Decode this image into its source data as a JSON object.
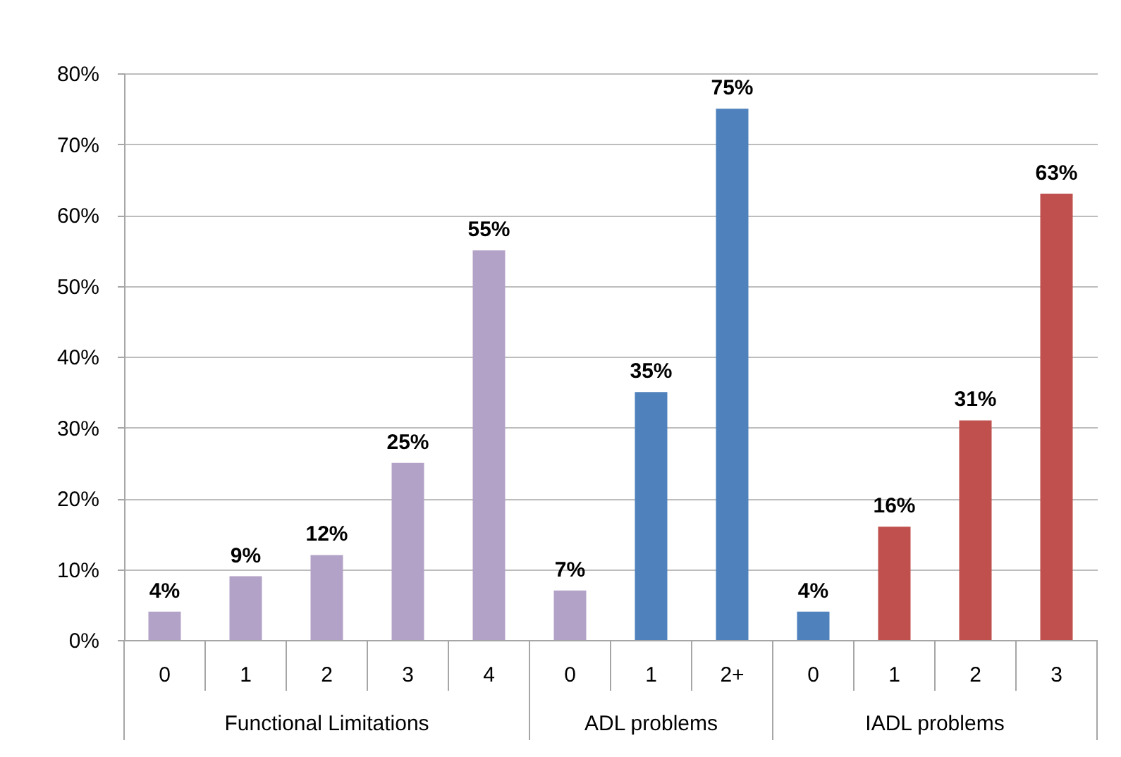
{
  "chart_data": {
    "type": "bar",
    "categories": [
      "0",
      "1",
      "2",
      "3",
      "4",
      "0",
      "1",
      "2+",
      "0",
      "1",
      "2",
      "3"
    ],
    "values": [
      4,
      9,
      12,
      25,
      55,
      7,
      35,
      75,
      4,
      16,
      31,
      63
    ],
    "colors": [
      "#b3a2c7",
      "#b3a2c7",
      "#b3a2c7",
      "#b3a2c7",
      "#b3a2c7",
      "#b3a2c7",
      "#4f81bd",
      "#4f81bd",
      "#4f81bd",
      "#c0504d",
      "#c0504d",
      "#c0504d"
    ],
    "value_labels": [
      "4%",
      "9%",
      "12%",
      "25%",
      "55%",
      "7%",
      "35%",
      "75%",
      "4%",
      "16%",
      "31%",
      "63%"
    ],
    "ylim": [
      0,
      80
    ],
    "yticks": [
      {
        "value": 0,
        "label": "0%"
      },
      {
        "value": 10,
        "label": "10%"
      },
      {
        "value": 20,
        "label": "20%"
      },
      {
        "value": 30,
        "label": "30%"
      },
      {
        "value": 40,
        "label": "40%"
      },
      {
        "value": 50,
        "label": "50%"
      },
      {
        "value": 60,
        "label": "60%"
      },
      {
        "value": 70,
        "label": "70%"
      },
      {
        "value": 80,
        "label": "80%"
      }
    ],
    "grid": "y",
    "annotations": [
      "Functional Limitations",
      "ADL problems",
      "IADL problems"
    ]
  }
}
